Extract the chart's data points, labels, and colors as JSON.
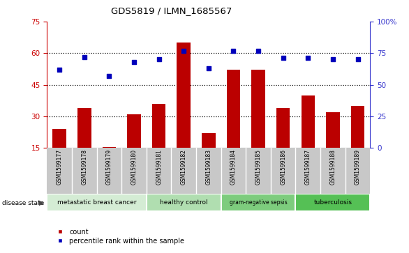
{
  "title": "GDS5819 / ILMN_1685567",
  "samples": [
    "GSM1599177",
    "GSM1599178",
    "GSM1599179",
    "GSM1599180",
    "GSM1599181",
    "GSM1599182",
    "GSM1599183",
    "GSM1599184",
    "GSM1599185",
    "GSM1599186",
    "GSM1599187",
    "GSM1599188",
    "GSM1599189"
  ],
  "counts": [
    24,
    34,
    15.5,
    31,
    36,
    65,
    22,
    52,
    52,
    34,
    40,
    32,
    35
  ],
  "percentiles": [
    62,
    72,
    57,
    68,
    70,
    77,
    63,
    77,
    77,
    71,
    71,
    70,
    70
  ],
  "ylim_left": [
    15,
    75
  ],
  "ylim_right": [
    0,
    100
  ],
  "yticks_left": [
    15,
    30,
    45,
    60,
    75
  ],
  "ytick_labels_left": [
    "15",
    "30",
    "45",
    "60",
    "75"
  ],
  "yticks_right": [
    0,
    25,
    50,
    75,
    100
  ],
  "ytick_labels_right": [
    "0",
    "25",
    "50",
    "75",
    "100%"
  ],
  "grid_yticks": [
    30,
    45,
    60
  ],
  "groups": [
    {
      "label": "metastatic breast cancer",
      "start": 0,
      "end": 4,
      "color": "#d4ecd4"
    },
    {
      "label": "healthy control",
      "start": 4,
      "end": 7,
      "color": "#b0deb0"
    },
    {
      "label": "gram-negative sepsis",
      "start": 7,
      "end": 10,
      "color": "#7dcc7d"
    },
    {
      "label": "tuberculosis",
      "start": 10,
      "end": 13,
      "color": "#55c055"
    }
  ],
  "bar_color": "#bb0000",
  "dot_color": "#0000bb",
  "grid_color": "#000000",
  "bg_color": "#ffffff",
  "sample_bg": "#c8c8c8",
  "left_axis_color": "#cc0000",
  "right_axis_color": "#3333cc",
  "legend_count_label": "count",
  "legend_pct_label": "percentile rank within the sample",
  "disease_state_label": "disease state"
}
